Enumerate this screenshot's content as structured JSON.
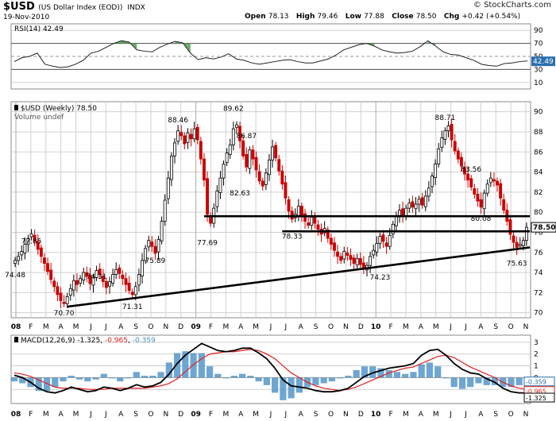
{
  "header": {
    "symbol": "$USD",
    "name": "(US Dollar Index (EOD))",
    "exchange": "INDX",
    "date": "19-Nov-2010",
    "open_label": "Open",
    "open": "78.13",
    "high_label": "High",
    "high": "79.46",
    "low_label": "Low",
    "low": "77.88",
    "close_label": "Close",
    "close": "78.50",
    "chg_label": "Chg",
    "chg": "+0.42 (+0.54%)",
    "brand": "© StockCharts.com"
  },
  "colors": {
    "up": "#000000",
    "down": "#cc0000",
    "grid": "#d0d0d0",
    "macd_hist": "#4a90c8",
    "signal": "#e02020",
    "rsi_fill": "#2e8b2e"
  },
  "chart_data": [
    {
      "type": "line",
      "title": "RSI(14) 42.49",
      "legend": "RSI(14)",
      "last_value": "42.49",
      "ylim": [
        0,
        100
      ],
      "y_ticks": [
        10,
        30,
        50,
        70,
        90
      ],
      "overbought": 70,
      "oversold": 30,
      "series": [
        {
          "name": "RSI(14)",
          "values": [
            42,
            48,
            50,
            55,
            38,
            35,
            33,
            34,
            38,
            44,
            55,
            58,
            64,
            70,
            74,
            72,
            60,
            58,
            57,
            64,
            69,
            73,
            71,
            55,
            45,
            48,
            46,
            49,
            54,
            46,
            44,
            40,
            38,
            40,
            42,
            44,
            45,
            42,
            40,
            40,
            43,
            46,
            52,
            60,
            64,
            68,
            70,
            66,
            60,
            57,
            55,
            56,
            58,
            65,
            74,
            66,
            57,
            53,
            52,
            48,
            44,
            38,
            36,
            35,
            39,
            40,
            42,
            43
          ]
        }
      ]
    },
    {
      "type": "candlestick",
      "title": "$USD (Weekly) 78.50",
      "legend": [
        "$USD (Weekly) 78.50",
        "Volume undef"
      ],
      "ylim": [
        69.5,
        91
      ],
      "y_ticks": [
        70,
        72,
        74,
        76,
        78,
        80,
        82,
        84,
        86,
        88,
        90
      ],
      "x_ticks": [
        "08",
        "F",
        "M",
        "A",
        "M",
        "J",
        "J",
        "A",
        "S",
        "O",
        "N",
        "D",
        "09",
        "F",
        "M",
        "A",
        "M",
        "J",
        "J",
        "A",
        "S",
        "O",
        "N",
        "D",
        "10",
        "F",
        "M",
        "A",
        "M",
        "J",
        "J",
        "A",
        "S",
        "O",
        "N"
      ],
      "last_price": "78.50",
      "closes": [
        75.2,
        75.6,
        76.1,
        76.8,
        77.4,
        77.85,
        77.1,
        76.3,
        75.6,
        74.9,
        74.1,
        73.3,
        72.6,
        71.8,
        71.2,
        70.9,
        71.6,
        72.4,
        73.2,
        72.8,
        73.4,
        74.0,
        73.6,
        72.9,
        73.5,
        74.2,
        73.8,
        73.1,
        72.5,
        73.1,
        73.8,
        74.3,
        73.9,
        73.4,
        72.8,
        72.2,
        71.8,
        72.6,
        73.8,
        75.2,
        76.4,
        77.2,
        76.6,
        75.9,
        77.3,
        79.1,
        81.2,
        83.4,
        85.6,
        86.9,
        88.1,
        87.6,
        86.8,
        87.9,
        87.3,
        88.3,
        87.2,
        85.3,
        83.2,
        79.8,
        78.9,
        80.4,
        82.1,
        83.4,
        84.8,
        85.9,
        86.7,
        88.3,
        88.7,
        87.1,
        85.6,
        84.5,
        86.2,
        85.3,
        84.2,
        83.1,
        82.6,
        83.9,
        85.2,
        86.5,
        85.4,
        84.1,
        82.8,
        81.4,
        80.1,
        79.3,
        79.8,
        80.6,
        79.7,
        79.1,
        78.7,
        79.5,
        78.9,
        78.3,
        77.8,
        78.4,
        77.4,
        76.8,
        76.2,
        75.6,
        75.2,
        76.1,
        75.7,
        75.3,
        74.9,
        75.4,
        74.8,
        74.4,
        74.7,
        75.6,
        76.2,
        76.9,
        77.6,
        77.1,
        76.6,
        77.7,
        78.8,
        79.6,
        80.2,
        79.7,
        80.4,
        80.9,
        80.5,
        80.8,
        81.3,
        80.7,
        81.6,
        82.4,
        83.6,
        84.8,
        86.3,
        87.4,
        88.1,
        88.6,
        87.2,
        86.1,
        85.3,
        84.6,
        83.8,
        83.2,
        82.5,
        81.8,
        81.1,
        80.5,
        81.9,
        82.8,
        83.4,
        83.1,
        82.7,
        81.4,
        80.2,
        79.1,
        77.8,
        77.0,
        76.5,
        76.8,
        77.2,
        78.5
      ],
      "labels": [
        {
          "text": "74.48",
          "x": 0,
          "y": 74.48
        },
        {
          "text": "77.85",
          "x": 5,
          "y": 77.85
        },
        {
          "text": "70.70",
          "x": 15,
          "y": 70.7
        },
        {
          "text": "74.31",
          "x": 25,
          "y": 74.31
        },
        {
          "text": "71.31",
          "x": 36,
          "y": 71.31
        },
        {
          "text": "75.89",
          "x": 43,
          "y": 75.89
        },
        {
          "text": "88.46",
          "x": 50,
          "y": 88.46
        },
        {
          "text": "77.69",
          "x": 59,
          "y": 77.69
        },
        {
          "text": "89.62",
          "x": 67,
          "y": 89.62
        },
        {
          "text": "86.87",
          "x": 71,
          "y": 86.87
        },
        {
          "text": "82.63",
          "x": 69,
          "y": 82.63
        },
        {
          "text": "78.33",
          "x": 85,
          "y": 78.33
        },
        {
          "text": "74.23",
          "x": 112,
          "y": 74.23
        },
        {
          "text": "88.71",
          "x": 132,
          "y": 88.71
        },
        {
          "text": "83.56",
          "x": 140,
          "y": 83.56
        },
        {
          "text": "80.08",
          "x": 143,
          "y": 80.08
        },
        {
          "text": "75.63",
          "x": 154,
          "y": 75.63
        }
      ],
      "trendlines": [
        {
          "name": "support-rising",
          "x1": 16,
          "y1": 70.6,
          "x2": 158,
          "y2": 76.5
        },
        {
          "name": "resistance-upper",
          "x1": 58,
          "y1": 79.6,
          "x2": 158,
          "y2": 79.6
        },
        {
          "name": "resistance-lower",
          "x1": 82,
          "y1": 78.1,
          "x2": 158,
          "y2": 78.1
        }
      ]
    },
    {
      "type": "line",
      "title": "MACD(12,26,9) -1.325, -0.965, -0.359",
      "legend_name": "MACD(12,26,9)",
      "legend_values": [
        "-1.325",
        "-0.965",
        "-0.359"
      ],
      "ylim": [
        -2.2,
        3.6
      ],
      "y_ticks": [
        -1,
        0,
        1,
        2,
        3
      ],
      "value_tags": [
        "-0.359",
        "-0.965",
        "-1.325"
      ],
      "series": [
        {
          "name": "MACD",
          "values": [
            0.2,
            0.0,
            -0.4,
            -0.9,
            -1.2,
            -1.3,
            -1.1,
            -0.8,
            -1.0,
            -1.2,
            -1.1,
            -0.8,
            -0.9,
            -1.1,
            -0.9,
            -0.6,
            -0.8,
            -0.7,
            -0.4,
            0.3,
            1.2,
            1.9,
            2.4,
            2.9,
            2.6,
            2.3,
            2.2,
            2.3,
            2.5,
            2.5,
            2.1,
            1.6,
            0.8,
            -0.2,
            -0.7,
            -0.8,
            -0.9,
            -1.1,
            -1.2,
            -1.2,
            -1.1,
            -0.9,
            -0.4,
            0.1,
            0.4,
            0.6,
            0.8,
            0.9,
            1.0,
            1.2,
            1.9,
            2.3,
            2.4,
            1.9,
            1.2,
            0.7,
            0.4,
            0.3,
            -0.1,
            -0.4,
            -0.9,
            -1.2,
            -1.3,
            -1.3
          ]
        },
        {
          "name": "Signal",
          "values": [
            0.4,
            0.3,
            0.1,
            -0.2,
            -0.5,
            -0.8,
            -0.9,
            -0.9,
            -0.9,
            -1.0,
            -1.0,
            -1.0,
            -0.9,
            -0.9,
            -0.9,
            -0.9,
            -0.9,
            -0.8,
            -0.7,
            -0.5,
            -0.1,
            0.5,
            1.1,
            1.6,
            2.0,
            2.1,
            2.2,
            2.2,
            2.3,
            2.4,
            2.3,
            2.0,
            1.6,
            1.0,
            0.4,
            0.0,
            -0.4,
            -0.7,
            -0.9,
            -1.0,
            -1.1,
            -1.0,
            -0.8,
            -0.5,
            -0.2,
            0.1,
            0.4,
            0.6,
            0.8,
            0.9,
            1.2,
            1.5,
            1.8,
            1.9,
            1.7,
            1.3,
            0.9,
            0.6,
            0.3,
            0.0,
            -0.4,
            -0.7,
            -0.9,
            -1.0
          ]
        }
      ]
    }
  ]
}
